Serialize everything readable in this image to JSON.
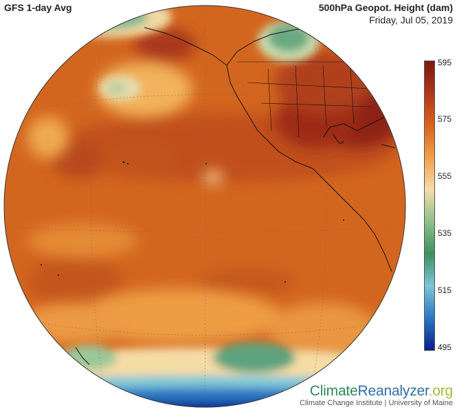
{
  "header": {
    "left_title": "GFS 1-day Avg",
    "right_title": "500hPa Geopot. Height (dam)",
    "date": "Friday, Jul 05, 2019"
  },
  "colorbar": {
    "ticks": [
      "595",
      "575",
      "555",
      "535",
      "515",
      "495"
    ],
    "colors": [
      "#7a1a10",
      "#b0361c",
      "#d8641e",
      "#f2a04a",
      "#f6dca8",
      "#8fc08a",
      "#3f8f60",
      "#7cc6d8",
      "#2a77c2",
      "#0a1f8a"
    ]
  },
  "map": {
    "projection": "orthographic",
    "variable": "500hPa geopotential height",
    "units": "dam"
  },
  "brand": {
    "name_part1": "Climate",
    "name_part2": "Reanalyzer",
    "name_part3": ".org",
    "subtitle": "Climate Change Institute | University of Maine"
  }
}
